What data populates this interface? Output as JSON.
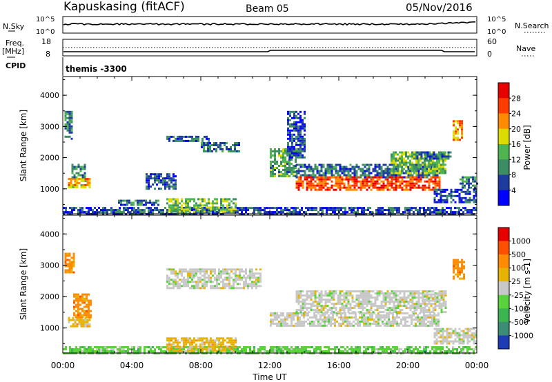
{
  "header": {
    "station": "Kapuskasing (fitACF)",
    "beam": "Beam 05",
    "date": "05/Nov/2016"
  },
  "strip_nsky": {
    "left_label": "N.Sky",
    "right_label": "N.Search",
    "left_ticks": [
      "10^5",
      "10^0"
    ],
    "right_ticks": [
      "10^5",
      "10^0"
    ]
  },
  "strip_freq": {
    "left_label_1": "Freq.",
    "left_label_2": "[MHz]",
    "right_label": "Nave",
    "left_ticks": [
      "18",
      "8"
    ],
    "right_ticks": [
      "60",
      "0"
    ]
  },
  "cpid": {
    "label": "CPID",
    "value": "themis -3300"
  },
  "colors": {
    "power": [
      "#0000ff",
      "#1e3ca0",
      "#3c8c64",
      "#50b450",
      "#dcdc00",
      "#ff8c00",
      "#ff3c00",
      "#e60000"
    ],
    "velocity": [
      "#1e3cb4",
      "#3c8c78",
      "#3cb450",
      "#5ad23c",
      "#c8c8c8",
      "#e6b400",
      "#ff8c00",
      "#ff5000",
      "#e60000"
    ]
  },
  "chart_data": [
    {
      "type": "heatmap",
      "name": "power-panel",
      "ylabel": "Slant Range [km]",
      "x_range_hours": [
        0,
        24
      ],
      "ylim": [
        200,
        4600
      ],
      "y_ticks": [
        "4000",
        "3000",
        "2000",
        "1000"
      ],
      "colorbar": {
        "label": "Power [dB]",
        "ticks": [
          "28",
          "24",
          "20",
          "16",
          "12",
          "8",
          "4"
        ],
        "range": [
          0,
          32
        ]
      },
      "regions": [
        {
          "t0": 0.1,
          "t1": 0.5,
          "r0": 2600,
          "r1": 3500,
          "v": 10
        },
        {
          "t0": 0.3,
          "t1": 1.6,
          "r0": 1050,
          "r1": 1350,
          "v": 20
        },
        {
          "t0": 0.5,
          "t1": 1.3,
          "r0": 1350,
          "r1": 1800,
          "v": 10
        },
        {
          "t0": 0.0,
          "t1": 24.0,
          "r0": 200,
          "r1": 420,
          "v": 6
        },
        {
          "t0": 3.2,
          "t1": 5.6,
          "r0": 500,
          "r1": 650,
          "v": 8
        },
        {
          "t0": 4.8,
          "t1": 6.5,
          "r0": 1000,
          "r1": 1500,
          "v": 7
        },
        {
          "t0": 6.0,
          "t1": 10.0,
          "r0": 300,
          "r1": 700,
          "v": 14
        },
        {
          "t0": 6.0,
          "t1": 8.5,
          "r0": 2550,
          "r1": 2700,
          "v": 6
        },
        {
          "t0": 8.0,
          "t1": 10.2,
          "r0": 2200,
          "r1": 2500,
          "v": 8
        },
        {
          "t0": 12.0,
          "t1": 13.5,
          "r0": 1400,
          "r1": 2300,
          "v": 12
        },
        {
          "t0": 13.0,
          "t1": 14.0,
          "r0": 2000,
          "r1": 3500,
          "v": 6
        },
        {
          "t0": 13.5,
          "t1": 21.8,
          "r0": 1350,
          "r1": 1800,
          "v": 8
        },
        {
          "t0": 13.5,
          "t1": 21.8,
          "r0": 1000,
          "r1": 1400,
          "v": 26
        },
        {
          "t0": 19.0,
          "t1": 22.2,
          "r0": 1500,
          "r1": 2200,
          "v": 14
        },
        {
          "t0": 20.5,
          "t1": 22.5,
          "r0": 2000,
          "r1": 2200,
          "v": 8
        },
        {
          "t0": 21.5,
          "t1": 24.0,
          "r0": 600,
          "r1": 1000,
          "v": 6
        },
        {
          "t0": 23.0,
          "t1": 24.0,
          "r0": 1050,
          "r1": 1400,
          "v": 10
        },
        {
          "t0": 22.6,
          "t1": 23.2,
          "r0": 2600,
          "r1": 3200,
          "v": 22
        }
      ]
    },
    {
      "type": "heatmap",
      "name": "velocity-panel",
      "ylabel": "Slant Range [km]",
      "xlabel": "Time UT",
      "x_range_hours": [
        0,
        24
      ],
      "x_ticks": [
        "00:00",
        "04:00",
        "08:00",
        "12:00",
        "16:00",
        "20:00",
        "00:00"
      ],
      "ylim": [
        200,
        4600
      ],
      "y_ticks": [
        "4000",
        "3000",
        "2000",
        "1000"
      ],
      "colorbar": {
        "label": "Velocity [m s-1]",
        "ticks": [
          "1000",
          "500",
          "100",
          "25",
          "-25",
          "-100",
          "-500",
          "-1000"
        ]
      },
      "regions": [
        {
          "t0": 0.1,
          "t1": 0.6,
          "r0": 2800,
          "r1": 3400,
          "v": 6
        },
        {
          "t0": 0.3,
          "t1": 1.6,
          "r0": 1050,
          "r1": 1350,
          "v": 5
        },
        {
          "t0": 0.6,
          "t1": 1.6,
          "r0": 1350,
          "r1": 2100,
          "v": 6
        },
        {
          "t0": 0.0,
          "t1": 24.0,
          "r0": 200,
          "r1": 420,
          "v": 3
        },
        {
          "t0": 6.0,
          "t1": 10.0,
          "r0": 300,
          "r1": 700,
          "v": 5
        },
        {
          "t0": 6.0,
          "t1": 11.5,
          "r0": 2300,
          "r1": 2900,
          "v": 4
        },
        {
          "t0": 12.0,
          "t1": 21.8,
          "r0": 1100,
          "r1": 1500,
          "v": 4
        },
        {
          "t0": 13.5,
          "t1": 22.2,
          "r0": 1500,
          "r1": 2200,
          "v": 4
        },
        {
          "t0": 20.8,
          "t1": 21.6,
          "r0": 1900,
          "r1": 2100,
          "v": 4
        },
        {
          "t0": 21.5,
          "t1": 24.0,
          "r0": 500,
          "r1": 1000,
          "v": 4
        },
        {
          "t0": 22.6,
          "t1": 23.3,
          "r0": 2600,
          "r1": 3200,
          "v": 6
        }
      ]
    }
  ]
}
